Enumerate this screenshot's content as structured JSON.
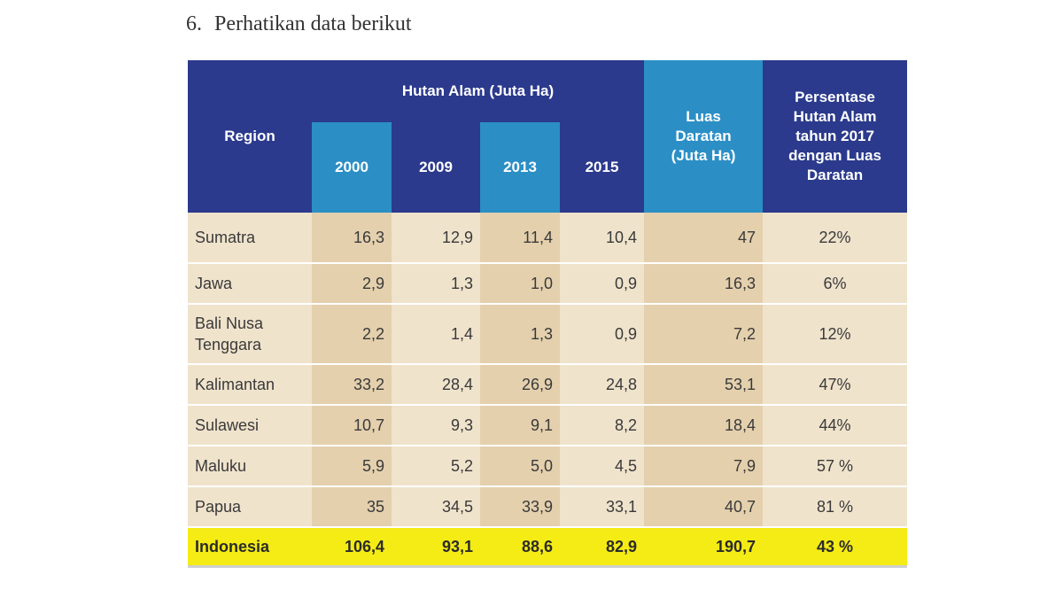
{
  "question": {
    "number": "6.",
    "text": "Perhatikan data berikut"
  },
  "headers": {
    "region": "Region",
    "group": "Hutan Alam (Juta Ha)",
    "years": [
      "2000",
      "2009",
      "2013",
      "2015"
    ],
    "luas": "Luas Daratan (Juta Ha)",
    "persen": "Persentase Hutan Alam tahun 2017 dengan Luas Daratan"
  },
  "rows": [
    {
      "region": "Sumatra",
      "y2000": "16,3",
      "y2009": "12,9",
      "y2013": "11,4",
      "y2015": "10,4",
      "luas": "47",
      "persen": "22%"
    },
    {
      "region": "Jawa",
      "y2000": "2,9",
      "y2009": "1,3",
      "y2013": "1,0",
      "y2015": "0,9",
      "luas": "16,3",
      "persen": "6%"
    },
    {
      "region": "Bali Nusa Tenggara",
      "y2000": "2,2",
      "y2009": "1,4",
      "y2013": "1,3",
      "y2015": "0,9",
      "luas": "7,2",
      "persen": "12%"
    },
    {
      "region": "Kalimantan",
      "y2000": "33,2",
      "y2009": "28,4",
      "y2013": "26,9",
      "y2015": "24,8",
      "luas": "53,1",
      "persen": "47%"
    },
    {
      "region": "Sulawesi",
      "y2000": "10,7",
      "y2009": "9,3",
      "y2013": "9,1",
      "y2015": "8,2",
      "luas": "18,4",
      "persen": "44%"
    },
    {
      "region": "Maluku",
      "y2000": "5,9",
      "y2009": "5,2",
      "y2013": "5,0",
      "y2015": "4,5",
      "luas": "7,9",
      "persen": "57 %"
    },
    {
      "region": "Papua",
      "y2000": "35",
      "y2009": "34,5",
      "y2013": "33,9",
      "y2015": "33,1",
      "luas": "40,7",
      "persen": "81 %"
    }
  ],
  "total": {
    "region": "Indonesia",
    "y2000": "106,4",
    "y2009": "93,1",
    "y2013": "88,6",
    "y2015": "82,9",
    "luas": "190,7",
    "persen": "43 %"
  },
  "colors": {
    "header_dark": "#2b3a8c",
    "header_light": "#2b8fc6",
    "row_light": "#f0e3cc",
    "row_shaded": "#e4d0ad",
    "total_highlight": "#f5ec15"
  }
}
